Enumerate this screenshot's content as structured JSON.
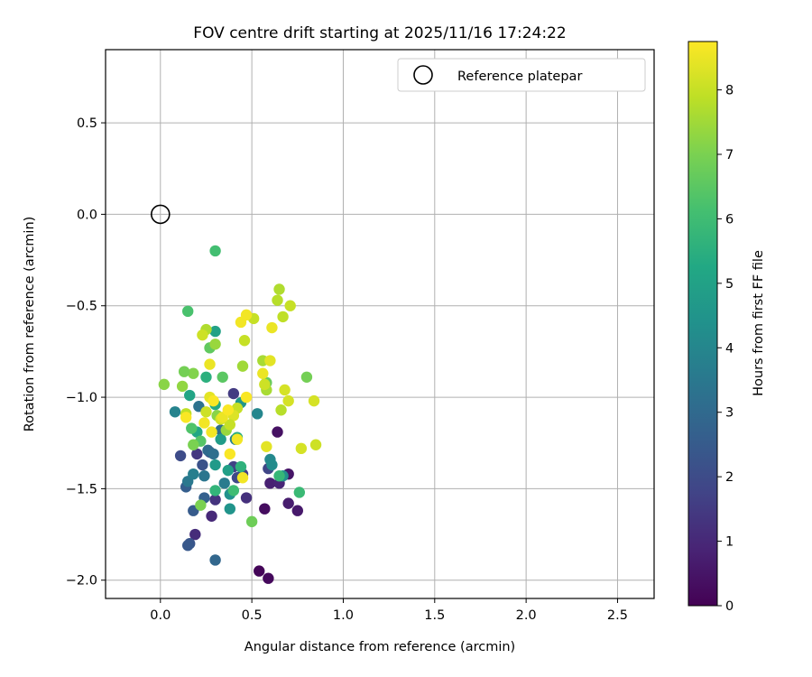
{
  "chart_data": {
    "type": "scatter",
    "title": "FOV centre drift starting at 2025/11/16 17:24:22",
    "xlabel": "Angular distance from reference (arcmin)",
    "ylabel": "Rotation from reference (arcmin)",
    "xlim": [
      -0.3,
      2.7
    ],
    "ylim": [
      -2.1,
      0.9
    ],
    "grid": true,
    "xticks": [
      0.0,
      0.5,
      1.0,
      1.5,
      2.0,
      2.5
    ],
    "xtick_labels": [
      "0.0",
      "0.5",
      "1.0",
      "1.5",
      "2.0",
      "2.5"
    ],
    "yticks": [
      0.5,
      0.0,
      -0.5,
      -1.0,
      -1.5,
      -2.0
    ],
    "ytick_labels": [
      "0.5",
      "0.0",
      "−0.5",
      "−1.0",
      "−1.5",
      "−2.0"
    ],
    "legend": {
      "label": "Reference platepar",
      "position": "top-right"
    },
    "reference_point": {
      "x": 0.0,
      "y": 0.0
    },
    "colorbar": {
      "label": "Hours from first FF file",
      "range": [
        0,
        8.75
      ],
      "ticks": [
        0,
        1,
        2,
        3,
        4,
        5,
        6,
        7,
        8
      ],
      "tick_labels": [
        "0",
        "1",
        "2",
        "3",
        "4",
        "5",
        "6",
        "7",
        "8"
      ],
      "colormap": "viridis"
    },
    "points": [
      {
        "x": 0.54,
        "y": -1.95,
        "c": 0.1
      },
      {
        "x": 0.59,
        "y": -1.99,
        "c": 0.2
      },
      {
        "x": 0.57,
        "y": -1.61,
        "c": 0.3
      },
      {
        "x": 0.64,
        "y": -1.19,
        "c": 0.4
      },
      {
        "x": 0.7,
        "y": -1.42,
        "c": 0.5
      },
      {
        "x": 0.75,
        "y": -1.62,
        "c": 0.6
      },
      {
        "x": 0.7,
        "y": -1.58,
        "c": 0.7
      },
      {
        "x": 0.6,
        "y": -1.47,
        "c": 0.8
      },
      {
        "x": 0.65,
        "y": -1.47,
        "c": 0.9
      },
      {
        "x": 0.28,
        "y": -1.65,
        "c": 1.0
      },
      {
        "x": 0.19,
        "y": -1.75,
        "c": 1.1
      },
      {
        "x": 0.47,
        "y": -1.55,
        "c": 1.2
      },
      {
        "x": 0.3,
        "y": -1.56,
        "c": 1.3
      },
      {
        "x": 0.2,
        "y": -1.31,
        "c": 1.4
      },
      {
        "x": 0.4,
        "y": -0.98,
        "c": 1.5
      },
      {
        "x": 0.45,
        "y": -1.42,
        "c": 1.6
      },
      {
        "x": 0.4,
        "y": -1.38,
        "c": 1.7
      },
      {
        "x": 0.59,
        "y": -1.39,
        "c": 1.8
      },
      {
        "x": 0.42,
        "y": -1.44,
        "c": 1.9
      },
      {
        "x": 0.11,
        "y": -1.32,
        "c": 2.0
      },
      {
        "x": 0.27,
        "y": -1.3,
        "c": 2.1
      },
      {
        "x": 0.23,
        "y": -1.37,
        "c": 2.2
      },
      {
        "x": 0.16,
        "y": -1.8,
        "c": 2.3
      },
      {
        "x": 0.15,
        "y": -1.81,
        "c": 2.4
      },
      {
        "x": 0.18,
        "y": -1.62,
        "c": 2.5
      },
      {
        "x": 0.14,
        "y": -1.49,
        "c": 2.6
      },
      {
        "x": 0.24,
        "y": -1.55,
        "c": 2.7
      },
      {
        "x": 0.3,
        "y": -1.89,
        "c": 2.9
      },
      {
        "x": 0.26,
        "y": -1.29,
        "c": 3.0
      },
      {
        "x": 0.33,
        "y": -1.18,
        "c": 3.1
      },
      {
        "x": 0.29,
        "y": -1.31,
        "c": 3.2
      },
      {
        "x": 0.21,
        "y": -1.05,
        "c": 3.3
      },
      {
        "x": 0.24,
        "y": -1.43,
        "c": 3.4
      },
      {
        "x": 0.15,
        "y": -1.46,
        "c": 3.5
      },
      {
        "x": 0.35,
        "y": -1.47,
        "c": 3.6
      },
      {
        "x": 0.18,
        "y": -1.42,
        "c": 3.7
      },
      {
        "x": 0.41,
        "y": -1.23,
        "c": 3.8
      },
      {
        "x": 0.08,
        "y": -1.08,
        "c": 3.9
      },
      {
        "x": 0.53,
        "y": -1.09,
        "c": 4.0
      },
      {
        "x": 0.6,
        "y": -1.34,
        "c": 4.1
      },
      {
        "x": 0.61,
        "y": -1.37,
        "c": 4.2
      },
      {
        "x": 0.67,
        "y": -1.43,
        "c": 4.3
      },
      {
        "x": 0.38,
        "y": -1.53,
        "c": 4.4
      },
      {
        "x": 0.38,
        "y": -1.61,
        "c": 4.5
      },
      {
        "x": 0.44,
        "y": -1.03,
        "c": 4.6
      },
      {
        "x": 0.3,
        "y": -1.37,
        "c": 4.7
      },
      {
        "x": 0.33,
        "y": -1.23,
        "c": 4.8
      },
      {
        "x": 0.37,
        "y": -1.4,
        "c": 4.9
      },
      {
        "x": 0.3,
        "y": -0.64,
        "c": 5.0
      },
      {
        "x": 0.16,
        "y": -0.99,
        "c": 5.1
      },
      {
        "x": 0.2,
        "y": -1.19,
        "c": 5.2
      },
      {
        "x": 0.3,
        "y": -1.04,
        "c": 5.3
      },
      {
        "x": 0.42,
        "y": -1.22,
        "c": 5.4
      },
      {
        "x": 0.25,
        "y": -0.89,
        "c": 5.5
      },
      {
        "x": 0.44,
        "y": -1.38,
        "c": 5.6
      },
      {
        "x": 0.3,
        "y": -1.51,
        "c": 5.7
      },
      {
        "x": 0.65,
        "y": -1.43,
        "c": 5.8
      },
      {
        "x": 0.76,
        "y": -1.52,
        "c": 5.9
      },
      {
        "x": 0.4,
        "y": -1.51,
        "c": 6.0
      },
      {
        "x": 0.3,
        "y": -0.2,
        "c": 6.1
      },
      {
        "x": 0.15,
        "y": -0.53,
        "c": 6.2
      },
      {
        "x": 0.17,
        "y": -1.17,
        "c": 6.3
      },
      {
        "x": 0.22,
        "y": -1.24,
        "c": 6.4
      },
      {
        "x": 0.34,
        "y": -0.89,
        "c": 6.5
      },
      {
        "x": 0.27,
        "y": -0.73,
        "c": 6.6
      },
      {
        "x": 0.58,
        "y": -0.92,
        "c": 6.7
      },
      {
        "x": 0.5,
        "y": -1.68,
        "c": 6.8
      },
      {
        "x": 0.8,
        "y": -0.89,
        "c": 6.9
      },
      {
        "x": 0.22,
        "y": -1.59,
        "c": 7.0
      },
      {
        "x": 0.18,
        "y": -0.87,
        "c": 7.1
      },
      {
        "x": 0.02,
        "y": -0.93,
        "c": 7.2
      },
      {
        "x": 0.12,
        "y": -0.94,
        "c": 7.3
      },
      {
        "x": 0.3,
        "y": -0.71,
        "c": 7.4
      },
      {
        "x": 0.45,
        "y": -0.83,
        "c": 7.5
      },
      {
        "x": 0.56,
        "y": -0.8,
        "c": 7.6
      },
      {
        "x": 0.25,
        "y": -0.63,
        "c": 7.7
      },
      {
        "x": 0.66,
        "y": -1.07,
        "c": 7.8
      },
      {
        "x": 0.14,
        "y": -1.09,
        "c": 7.9
      },
      {
        "x": 0.13,
        "y": -0.86,
        "c": 6.9
      },
      {
        "x": 0.18,
        "y": -1.26,
        "c": 7.0
      },
      {
        "x": 0.31,
        "y": -1.1,
        "c": 7.2
      },
      {
        "x": 0.36,
        "y": -1.18,
        "c": 7.4
      },
      {
        "x": 0.58,
        "y": -0.96,
        "c": 7.6
      },
      {
        "x": 0.65,
        "y": -0.41,
        "c": 7.7
      },
      {
        "x": 0.64,
        "y": -0.47,
        "c": 7.8
      },
      {
        "x": 0.67,
        "y": -0.56,
        "c": 7.9
      },
      {
        "x": 0.71,
        "y": -0.5,
        "c": 8.0
      },
      {
        "x": 0.51,
        "y": -0.57,
        "c": 8.0
      },
      {
        "x": 0.46,
        "y": -0.69,
        "c": 8.0
      },
      {
        "x": 0.23,
        "y": -0.66,
        "c": 8.1
      },
      {
        "x": 0.57,
        "y": -0.93,
        "c": 8.1
      },
      {
        "x": 0.68,
        "y": -0.96,
        "c": 8.2
      },
      {
        "x": 0.7,
        "y": -1.02,
        "c": 8.2
      },
      {
        "x": 0.84,
        "y": -1.02,
        "c": 8.2
      },
      {
        "x": 0.77,
        "y": -1.28,
        "c": 8.2
      },
      {
        "x": 0.85,
        "y": -1.26,
        "c": 8.1
      },
      {
        "x": 0.42,
        "y": -1.06,
        "c": 8.0
      },
      {
        "x": 0.25,
        "y": -1.08,
        "c": 8.1
      },
      {
        "x": 0.33,
        "y": -1.12,
        "c": 8.2
      },
      {
        "x": 0.4,
        "y": -1.1,
        "c": 8.3
      },
      {
        "x": 0.38,
        "y": -1.15,
        "c": 8.0
      },
      {
        "x": 0.27,
        "y": -1.0,
        "c": 8.4
      },
      {
        "x": 0.6,
        "y": -0.8,
        "c": 8.4
      },
      {
        "x": 0.61,
        "y": -0.62,
        "c": 8.5
      },
      {
        "x": 0.44,
        "y": -0.59,
        "c": 8.6
      },
      {
        "x": 0.47,
        "y": -0.55,
        "c": 8.6
      },
      {
        "x": 0.56,
        "y": -0.87,
        "c": 8.5
      },
      {
        "x": 0.27,
        "y": -0.82,
        "c": 8.5
      },
      {
        "x": 0.34,
        "y": -1.11,
        "c": 8.5
      },
      {
        "x": 0.42,
        "y": -1.23,
        "c": 8.6
      },
      {
        "x": 0.45,
        "y": -1.44,
        "c": 8.6
      },
      {
        "x": 0.58,
        "y": -1.27,
        "c": 8.4
      },
      {
        "x": 0.28,
        "y": -1.19,
        "c": 8.6
      },
      {
        "x": 0.24,
        "y": -1.14,
        "c": 8.6
      },
      {
        "x": 0.47,
        "y": -1.0,
        "c": 8.7
      },
      {
        "x": 0.37,
        "y": -1.07,
        "c": 8.7
      },
      {
        "x": 0.14,
        "y": -1.11,
        "c": 8.7
      },
      {
        "x": 0.29,
        "y": -1.02,
        "c": 8.7
      },
      {
        "x": 0.38,
        "y": -1.31,
        "c": 8.7
      }
    ]
  }
}
